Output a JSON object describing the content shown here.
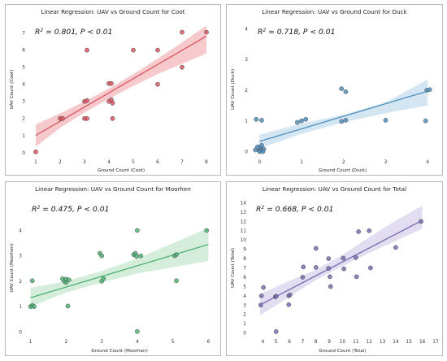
{
  "chart_data": [
    {
      "type": "scatter",
      "title": "Linear Regression: UAV vs Ground Count for Coot",
      "xlabel": "Ground Count (Coot)",
      "ylabel": "UAV Count (Coot)",
      "annotation": {
        "r2": "0.801",
        "p": "P < 0.01"
      },
      "color": "#d9545e",
      "band_color": "#f3b8bc",
      "xlim": [
        0.7,
        8.3
      ],
      "ylim": [
        -0.2,
        7.6
      ],
      "xticks": [
        1,
        2,
        3,
        4,
        5,
        6,
        7,
        8
      ],
      "yticks": [
        0,
        1,
        2,
        3,
        4,
        5,
        6,
        7
      ],
      "grid": false,
      "fit": {
        "slope": 0.83,
        "intercept": 0.18
      },
      "band": [
        [
          1,
          0.35,
          1.65
        ],
        [
          2,
          1.45,
          2.3
        ],
        [
          3,
          2.35,
          3.0
        ],
        [
          4,
          3.15,
          3.75
        ],
        [
          5,
          3.9,
          4.6
        ],
        [
          6,
          4.6,
          5.5
        ],
        [
          7,
          5.2,
          6.45
        ],
        [
          8,
          5.8,
          7.45
        ]
      ],
      "points": [
        [
          1,
          0.05
        ],
        [
          2,
          2.0
        ],
        [
          2.1,
          2.0
        ],
        [
          3,
          2.0
        ],
        [
          3.1,
          2.0
        ],
        [
          3,
          3.0
        ],
        [
          3.1,
          3.05
        ],
        [
          3.1,
          6.0
        ],
        [
          4,
          4.05
        ],
        [
          4.1,
          4.05
        ],
        [
          4,
          3.0
        ],
        [
          4.1,
          3.1
        ],
        [
          4.15,
          2.9
        ],
        [
          4.15,
          2.0
        ],
        [
          5,
          6.0
        ],
        [
          6,
          6.0
        ],
        [
          6,
          4.0
        ],
        [
          7,
          7.05
        ],
        [
          7,
          5.0
        ],
        [
          8,
          7.05
        ]
      ]
    },
    {
      "type": "scatter",
      "title": "Linear Regression: UAV vs Ground Count for Duck",
      "xlabel": "Ground Count (Duck)",
      "ylabel": "UAV Count (Duck)",
      "annotation": {
        "r2": "0.718",
        "p": "P < 0.01"
      },
      "color": "#4f8fbd",
      "band_color": "#c7ddef",
      "xlim": [
        -0.2,
        4.15
      ],
      "ylim": [
        -0.15,
        4.2
      ],
      "xticks": [
        0,
        1,
        2,
        3,
        4
      ],
      "yticks": [
        0,
        1,
        2,
        3,
        4
      ],
      "grid": false,
      "fit": {
        "slope": 0.41,
        "intercept": 0.33
      },
      "band": [
        [
          0,
          0.1,
          0.55
        ],
        [
          1,
          0.58,
          0.92
        ],
        [
          2,
          0.95,
          1.2
        ],
        [
          3,
          1.25,
          1.6
        ],
        [
          4,
          1.5,
          2.35
        ]
      ],
      "points": [
        [
          -0.1,
          0.05
        ],
        [
          0,
          0.02
        ],
        [
          0.05,
          0.05
        ],
        [
          0.1,
          0.08
        ],
        [
          0,
          0.12
        ],
        [
          -0.05,
          0.15
        ],
        [
          0.05,
          0.2
        ],
        [
          0,
          0.0
        ],
        [
          0.08,
          0.0
        ],
        [
          -0.08,
          1.05
        ],
        [
          0.05,
          1.02
        ],
        [
          0.9,
          0.95
        ],
        [
          1,
          1.0
        ],
        [
          1.1,
          1.05
        ],
        [
          1.95,
          2.05
        ],
        [
          2.05,
          1.95
        ],
        [
          1.95,
          0.98
        ],
        [
          2.05,
          1.02
        ],
        [
          3,
          1.02
        ],
        [
          3.95,
          1.0
        ],
        [
          3.98,
          2.0
        ],
        [
          4.05,
          2.02
        ]
      ]
    },
    {
      "type": "scatter",
      "title": "Linear Regression: UAV vs Ground Count for Moorhen",
      "xlabel": "Ground Count (Moorhen)",
      "ylabel": "UAV Count (Moorhen)",
      "annotation": {
        "r2": "0.475",
        "p": "P < 0.01"
      },
      "color": "#4fb274",
      "band_color": "#c5e8cf",
      "xlim": [
        0.85,
        6.15
      ],
      "ylim": [
        -0.15,
        5.2
      ],
      "xticks": [
        1,
        2,
        3,
        4,
        5,
        6
      ],
      "yticks": [
        0,
        1,
        2,
        3,
        4
      ],
      "grid": false,
      "fit": {
        "slope": 0.42,
        "intercept": 0.93
      },
      "band": [
        [
          1,
          1.0,
          1.75
        ],
        [
          2,
          1.55,
          2.0
        ],
        [
          3,
          1.95,
          2.4
        ],
        [
          4,
          2.3,
          2.9
        ],
        [
          5,
          2.55,
          3.5
        ],
        [
          6,
          2.8,
          4.1
        ]
      ],
      "points": [
        [
          1,
          1.0
        ],
        [
          1.05,
          1.05
        ],
        [
          1.1,
          1.0
        ],
        [
          1.05,
          2.02
        ],
        [
          1.9,
          2.1
        ],
        [
          1.95,
          2.0
        ],
        [
          2,
          1.95
        ],
        [
          2,
          2.08
        ],
        [
          2.05,
          1.02
        ],
        [
          2.08,
          2.05
        ],
        [
          2.95,
          3.1
        ],
        [
          3,
          3.0
        ],
        [
          3,
          2.0
        ],
        [
          3.05,
          2.1
        ],
        [
          3.9,
          3.05
        ],
        [
          3.95,
          3.1
        ],
        [
          3.98,
          2.98
        ],
        [
          4,
          4.0
        ],
        [
          4.1,
          3.0
        ],
        [
          4,
          0.02
        ],
        [
          5.05,
          3.0
        ],
        [
          5.1,
          3.05
        ],
        [
          5.1,
          2.02
        ],
        [
          5.95,
          4.0
        ]
      ]
    },
    {
      "type": "scatter",
      "title": "Linear Regression: UAV vs Ground Count for Total",
      "xlabel": "Ground Count (Total)",
      "ylabel": "UAV Count (Total)",
      "annotation": {
        "r2": "0.668",
        "p": "P < 0.01"
      },
      "color": "#7a6bb0",
      "band_color": "#d8d1ec",
      "xlim": [
        3,
        17
      ],
      "ylim": [
        -0.3,
        14.3
      ],
      "xticks": [
        4,
        5,
        6,
        7,
        8,
        9,
        10,
        11,
        12,
        13,
        14,
        15,
        16,
        17
      ],
      "yticks": [
        0,
        1,
        2,
        3,
        4,
        5,
        6,
        7,
        8,
        9,
        10,
        11,
        12,
        13,
        14
      ],
      "grid": false,
      "fit": {
        "slope": 0.745,
        "intercept": 0.2
      },
      "band": [
        [
          3.8,
          1.9,
          4.2
        ],
        [
          6,
          3.9,
          5.6
        ],
        [
          8,
          5.7,
          6.8
        ],
        [
          10,
          7.2,
          8.4
        ],
        [
          12,
          8.6,
          10.3
        ],
        [
          14,
          9.9,
          12.1
        ],
        [
          16,
          11.2,
          13.7
        ]
      ],
      "points": [
        [
          3.85,
          3.0
        ],
        [
          3.9,
          4.0
        ],
        [
          4.05,
          4.9
        ],
        [
          4.95,
          3.9
        ],
        [
          5,
          3.95
        ],
        [
          5,
          0.15
        ],
        [
          5.95,
          4.0
        ],
        [
          6.05,
          4.1
        ],
        [
          5.95,
          3.05
        ],
        [
          7,
          6.0
        ],
        [
          7.05,
          7.1
        ],
        [
          8,
          7.05
        ],
        [
          8,
          9.1
        ],
        [
          8.95,
          6.95
        ],
        [
          9.05,
          6.05
        ],
        [
          9.1,
          5.0
        ],
        [
          8.95,
          8.0
        ],
        [
          10.05,
          8.05
        ],
        [
          10.1,
          6.9
        ],
        [
          11,
          8.1
        ],
        [
          11.05,
          6.05
        ],
        [
          11.2,
          10.9
        ],
        [
          12,
          11.0
        ],
        [
          12.1,
          7.0
        ],
        [
          14,
          9.2
        ],
        [
          15.9,
          12.0
        ]
      ]
    }
  ]
}
